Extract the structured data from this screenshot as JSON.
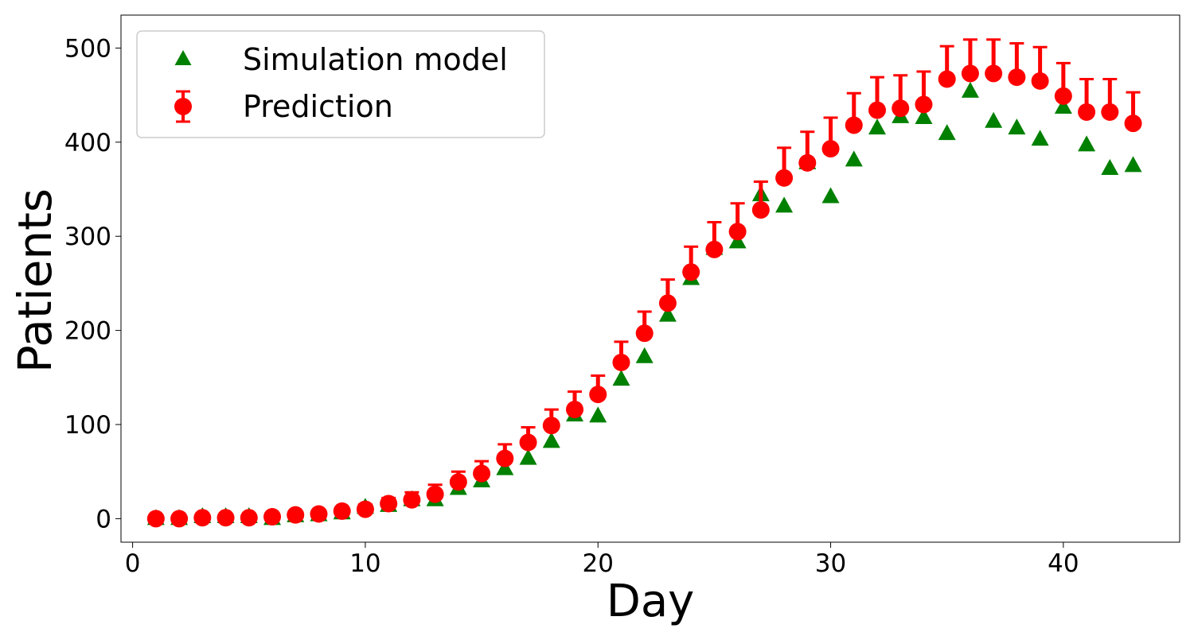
{
  "chart_data": {
    "type": "scatter",
    "title": "",
    "xlabel": "Day",
    "ylabel": "Patients",
    "xlim": [
      -0.5,
      45
    ],
    "ylim": [
      -25,
      535
    ],
    "xticks": [
      "0",
      "10",
      "20",
      "30",
      "40"
    ],
    "yticks": [
      "0",
      "100",
      "200",
      "300",
      "400",
      "500"
    ],
    "grid": false,
    "legend": {
      "placement": "top-left"
    },
    "series": [
      {
        "name": "Simulation model",
        "marker": "triangle",
        "color": "#008000",
        "x": [
          1,
          2,
          3,
          4,
          5,
          6,
          7,
          8,
          9,
          10,
          11,
          12,
          13,
          14,
          15,
          16,
          17,
          18,
          19,
          20,
          21,
          22,
          23,
          24,
          25,
          26,
          27,
          28,
          29,
          30,
          31,
          32,
          33,
          34,
          35,
          36,
          37,
          38,
          39,
          40,
          41,
          42,
          43
        ],
        "y": [
          0,
          0,
          2,
          2,
          2,
          0,
          3,
          4,
          6,
          12,
          14,
          20,
          20,
          32,
          40,
          53,
          64,
          82,
          110,
          109,
          148,
          172,
          216,
          255,
          287,
          294,
          344,
          332,
          378,
          342,
          381,
          415,
          427,
          426,
          409,
          454,
          422,
          415,
          403,
          437,
          397,
          372,
          375
        ]
      },
      {
        "name": "Prediction",
        "marker": "circle",
        "color": "#ff0000",
        "x": [
          1,
          2,
          3,
          4,
          5,
          6,
          7,
          8,
          9,
          10,
          11,
          12,
          13,
          14,
          15,
          16,
          17,
          18,
          19,
          20,
          21,
          22,
          23,
          24,
          25,
          26,
          27,
          28,
          29,
          30,
          31,
          32,
          33,
          34,
          35,
          36,
          37,
          38,
          39,
          40,
          41,
          42,
          43
        ],
        "y": [
          0,
          0,
          1,
          1,
          1,
          2,
          4,
          5,
          8,
          10,
          16,
          20,
          26,
          39,
          48,
          64,
          81,
          99,
          116,
          132,
          166,
          197,
          229,
          262,
          286,
          305,
          328,
          362,
          378,
          393,
          418,
          434,
          436,
          440,
          467,
          473,
          473,
          469,
          465,
          449,
          432,
          432,
          420
        ],
        "yerr_upper": [
          0,
          0,
          1,
          1,
          1,
          1,
          2,
          3,
          4,
          5,
          6,
          8,
          10,
          11,
          13,
          15,
          16,
          17,
          19,
          20,
          22,
          23,
          25,
          27,
          29,
          30,
          30,
          32,
          33,
          33,
          34,
          35,
          35,
          35,
          35,
          36,
          36,
          36,
          36,
          35,
          35,
          35,
          33
        ]
      }
    ]
  }
}
